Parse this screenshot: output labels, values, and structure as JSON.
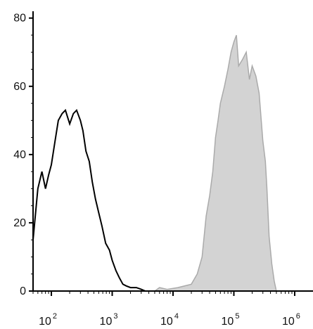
{
  "chart_data": {
    "type": "area",
    "title": "",
    "xlabel": "",
    "ylabel": "",
    "x_scale": "log",
    "xlim": [
      50,
      2000000
    ],
    "ylim": [
      0,
      82
    ],
    "grid": false,
    "legend": "none",
    "x_ticks": [
      {
        "base": "10",
        "exp": "2",
        "value": 100
      },
      {
        "base": "10",
        "exp": "3",
        "value": 1000
      },
      {
        "base": "10",
        "exp": "4",
        "value": 10000
      },
      {
        "base": "10",
        "exp": "5",
        "value": 100000
      },
      {
        "base": "10",
        "exp": "6",
        "value": 1000000
      }
    ],
    "y_ticks": [
      {
        "label": "0",
        "value": 0
      },
      {
        "label": "20",
        "value": 20
      },
      {
        "label": "40",
        "value": 40
      },
      {
        "label": "60",
        "value": 60
      },
      {
        "label": "80",
        "value": 80
      }
    ],
    "series": [
      {
        "style": "outline",
        "color": "#000000",
        "points": [
          [
            50,
            15
          ],
          [
            60,
            30
          ],
          [
            70,
            35
          ],
          [
            80,
            30
          ],
          [
            90,
            34
          ],
          [
            100,
            37
          ],
          [
            115,
            44
          ],
          [
            130,
            50
          ],
          [
            150,
            52
          ],
          [
            170,
            53
          ],
          [
            200,
            49
          ],
          [
            230,
            52
          ],
          [
            260,
            53
          ],
          [
            300,
            50
          ],
          [
            330,
            47
          ],
          [
            370,
            41
          ],
          [
            420,
            38
          ],
          [
            470,
            32
          ],
          [
            530,
            27
          ],
          [
            600,
            23
          ],
          [
            680,
            19
          ],
          [
            780,
            14
          ],
          [
            900,
            12
          ],
          [
            1000,
            9
          ],
          [
            1150,
            6
          ],
          [
            1300,
            4
          ],
          [
            1500,
            2
          ],
          [
            1700,
            1.5
          ],
          [
            2000,
            1
          ],
          [
            2500,
            1
          ],
          [
            3000,
            0.5
          ],
          [
            3500,
            0
          ]
        ]
      },
      {
        "style": "filled",
        "color": "#aaaaaa",
        "fill": "#d3d3d3",
        "points": [
          [
            3000,
            0
          ],
          [
            5000,
            0
          ],
          [
            6000,
            1
          ],
          [
            8000,
            0.5
          ],
          [
            12000,
            1
          ],
          [
            20000,
            2
          ],
          [
            25000,
            5
          ],
          [
            30000,
            10
          ],
          [
            35000,
            22
          ],
          [
            40000,
            28
          ],
          [
            45000,
            35
          ],
          [
            50000,
            45
          ],
          [
            55000,
            50
          ],
          [
            60000,
            55
          ],
          [
            70000,
            60
          ],
          [
            80000,
            65
          ],
          [
            90000,
            70
          ],
          [
            100000,
            73
          ],
          [
            110000,
            75
          ],
          [
            120000,
            66
          ],
          [
            140000,
            68
          ],
          [
            160000,
            70
          ],
          [
            180000,
            62
          ],
          [
            200000,
            66
          ],
          [
            230000,
            63
          ],
          [
            260000,
            58
          ],
          [
            300000,
            44
          ],
          [
            330000,
            38
          ],
          [
            350000,
            30
          ],
          [
            380000,
            16
          ],
          [
            420000,
            8
          ],
          [
            460000,
            3
          ],
          [
            500000,
            0
          ]
        ]
      }
    ]
  }
}
